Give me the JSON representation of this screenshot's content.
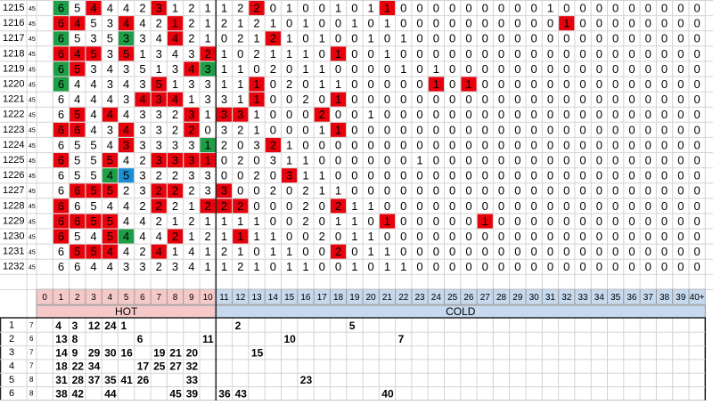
{
  "rows": [
    {
      "id": "1215",
      "sub": "45",
      "values": [
        6,
        5,
        4,
        4,
        4,
        2,
        3,
        1,
        2,
        1,
        1,
        2,
        2,
        0,
        1,
        0,
        0,
        1,
        0,
        1,
        1,
        0,
        0,
        0,
        0,
        0,
        0,
        0,
        0,
        0,
        1,
        0,
        0,
        0,
        0,
        0,
        0,
        0,
        0,
        0
      ],
      "red": [
        2,
        6,
        12,
        20
      ],
      "green": [
        0
      ],
      "blue": []
    },
    {
      "id": "1216",
      "sub": "45",
      "values": [
        6,
        4,
        5,
        3,
        4,
        4,
        2,
        1,
        2,
        1,
        2,
        1,
        2,
        1,
        0,
        1,
        0,
        0,
        1,
        0,
        1,
        0,
        0,
        0,
        0,
        0,
        0,
        0,
        0,
        0,
        0,
        1,
        0,
        0,
        0,
        0,
        0,
        0,
        0,
        0
      ],
      "red": [
        0,
        1,
        4,
        7,
        31
      ],
      "green": [],
      "blue": []
    },
    {
      "id": "1217",
      "sub": "45",
      "values": [
        6,
        5,
        3,
        5,
        3,
        3,
        4,
        4,
        2,
        1,
        0,
        2,
        1,
        2,
        1,
        0,
        1,
        0,
        0,
        1,
        0,
        1,
        0,
        0,
        0,
        0,
        0,
        0,
        0,
        0,
        0,
        0,
        0,
        0,
        0,
        0,
        0,
        0,
        0,
        0
      ],
      "red": [
        7,
        13
      ],
      "green": [
        0,
        4
      ],
      "blue": []
    },
    {
      "id": "1218",
      "sub": "45",
      "values": [
        6,
        4,
        5,
        3,
        5,
        1,
        3,
        4,
        3,
        2,
        1,
        0,
        2,
        1,
        1,
        1,
        0,
        1,
        0,
        0,
        1,
        0,
        0,
        0,
        0,
        0,
        0,
        0,
        0,
        0,
        0,
        0,
        0,
        0,
        0,
        0,
        0,
        0,
        0,
        0
      ],
      "red": [
        0,
        1,
        2,
        4,
        9,
        17
      ],
      "green": [],
      "blue": []
    },
    {
      "id": "1219",
      "sub": "45",
      "values": [
        6,
        5,
        3,
        4,
        3,
        5,
        1,
        3,
        4,
        3,
        1,
        1,
        0,
        2,
        0,
        1,
        1,
        0,
        0,
        0,
        0,
        1,
        0,
        1,
        0,
        0,
        0,
        0,
        0,
        0,
        0,
        0,
        0,
        0,
        0,
        0,
        0,
        0,
        0,
        0
      ],
      "red": [
        1,
        8
      ],
      "green": [
        0,
        9
      ],
      "blue": []
    },
    {
      "id": "1220",
      "sub": "45",
      "values": [
        6,
        4,
        4,
        3,
        4,
        3,
        5,
        1,
        3,
        3,
        1,
        1,
        1,
        0,
        2,
        0,
        1,
        1,
        0,
        0,
        0,
        0,
        0,
        1,
        0,
        1,
        0,
        0,
        0,
        0,
        0,
        0,
        0,
        0,
        0,
        0,
        0,
        0,
        0,
        0
      ],
      "red": [
        6,
        12,
        23,
        25
      ],
      "green": [
        0
      ],
      "blue": []
    },
    {
      "id": "1221",
      "sub": "45",
      "values": [
        6,
        4,
        4,
        4,
        3,
        4,
        3,
        4,
        1,
        3,
        3,
        1,
        1,
        0,
        0,
        2,
        0,
        1,
        0,
        0,
        0,
        0,
        0,
        0,
        0,
        0,
        0,
        0,
        0,
        0,
        0,
        0,
        0,
        0,
        0,
        0,
        0,
        0,
        0,
        0
      ],
      "red": [
        5,
        6,
        7,
        12,
        17
      ],
      "green": [],
      "blue": []
    },
    {
      "id": "1222",
      "sub": "45",
      "values": [
        6,
        5,
        4,
        4,
        4,
        3,
        3,
        2,
        3,
        1,
        3,
        3,
        1,
        0,
        0,
        0,
        2,
        0,
        0,
        1,
        0,
        0,
        0,
        0,
        0,
        0,
        0,
        0,
        0,
        0,
        0,
        0,
        0,
        0,
        0,
        0,
        0,
        0,
        0,
        0
      ],
      "red": [
        1,
        3,
        8,
        10,
        11,
        16
      ],
      "green": [],
      "blue": []
    },
    {
      "id": "1223",
      "sub": "45",
      "values": [
        6,
        6,
        4,
        3,
        4,
        3,
        3,
        2,
        2,
        0,
        3,
        2,
        1,
        0,
        0,
        0,
        1,
        1,
        0,
        0,
        0,
        0,
        0,
        0,
        0,
        0,
        0,
        0,
        0,
        0,
        0,
        0,
        0,
        0,
        0,
        0,
        0,
        0,
        0,
        0
      ],
      "red": [
        0,
        1,
        4,
        8,
        17
      ],
      "green": [],
      "blue": []
    },
    {
      "id": "1224",
      "sub": "45",
      "values": [
        6,
        5,
        5,
        4,
        3,
        3,
        3,
        3,
        3,
        1,
        2,
        0,
        3,
        2,
        1,
        0,
        0,
        0,
        0,
        0,
        0,
        0,
        0,
        0,
        0,
        0,
        0,
        0,
        0,
        0,
        0,
        0,
        0,
        0,
        0,
        0,
        0,
        0,
        0,
        0
      ],
      "red": [
        4,
        13
      ],
      "green": [
        9
      ],
      "blue": []
    },
    {
      "id": "1225",
      "sub": "45",
      "values": [
        6,
        5,
        5,
        5,
        4,
        2,
        3,
        3,
        3,
        1,
        0,
        2,
        0,
        3,
        1,
        1,
        0,
        0,
        0,
        0,
        0,
        0,
        1,
        0,
        0,
        0,
        0,
        0,
        0,
        0,
        0,
        0,
        0,
        0,
        0,
        0,
        0,
        0,
        0,
        0
      ],
      "red": [
        0,
        3,
        6,
        7,
        8,
        9
      ],
      "green": [],
      "blue": []
    },
    {
      "id": "1226",
      "sub": "45",
      "values": [
        6,
        5,
        5,
        4,
        5,
        3,
        2,
        2,
        3,
        3,
        0,
        0,
        2,
        0,
        3,
        1,
        1,
        0,
        0,
        0,
        0,
        0,
        0,
        0,
        0,
        0,
        0,
        0,
        0,
        0,
        0,
        0,
        0,
        0,
        0,
        0,
        0,
        0,
        0,
        0
      ],
      "red": [
        14
      ],
      "green": [
        3
      ],
      "blue": [
        4
      ]
    },
    {
      "id": "1227",
      "sub": "45",
      "values": [
        6,
        6,
        5,
        5,
        2,
        3,
        2,
        2,
        2,
        3,
        3,
        0,
        0,
        2,
        0,
        2,
        1,
        1,
        0,
        0,
        0,
        0,
        0,
        0,
        0,
        0,
        0,
        0,
        0,
        0,
        0,
        0,
        0,
        0,
        0,
        0,
        0,
        0,
        0,
        0
      ],
      "red": [
        1,
        2,
        3,
        6,
        7,
        10
      ],
      "green": [],
      "blue": []
    },
    {
      "id": "1228",
      "sub": "45",
      "values": [
        6,
        6,
        5,
        4,
        4,
        2,
        2,
        2,
        1,
        2,
        2,
        2,
        0,
        0,
        0,
        2,
        0,
        2,
        1,
        1,
        0,
        0,
        0,
        0,
        0,
        0,
        0,
        0,
        0,
        0,
        0,
        0,
        0,
        0,
        0,
        0,
        0,
        0,
        0,
        0
      ],
      "red": [
        0,
        6,
        9,
        10,
        11,
        17
      ],
      "green": [],
      "blue": []
    },
    {
      "id": "1229",
      "sub": "45",
      "values": [
        6,
        6,
        5,
        5,
        4,
        4,
        2,
        1,
        2,
        1,
        1,
        1,
        1,
        0,
        0,
        2,
        0,
        1,
        1,
        0,
        1,
        0,
        0,
        0,
        0,
        0,
        1,
        0,
        0,
        0,
        0,
        0,
        0,
        0,
        0,
        0,
        0,
        0,
        0,
        0
      ],
      "red": [
        0,
        1,
        2,
        3,
        20,
        26
      ],
      "green": [],
      "blue": []
    },
    {
      "id": "1230",
      "sub": "45",
      "values": [
        6,
        5,
        4,
        5,
        4,
        4,
        4,
        2,
        1,
        2,
        1,
        1,
        1,
        1,
        0,
        0,
        2,
        0,
        1,
        1,
        0,
        0,
        0,
        0,
        0,
        0,
        0,
        0,
        0,
        0,
        0,
        0,
        0,
        0,
        0,
        0,
        0,
        0,
        0,
        0
      ],
      "red": [
        0,
        3,
        7,
        11
      ],
      "green": [
        4
      ],
      "blue": []
    },
    {
      "id": "1231",
      "sub": "45",
      "values": [
        6,
        5,
        5,
        4,
        4,
        2,
        4,
        1,
        4,
        1,
        2,
        1,
        0,
        1,
        1,
        0,
        0,
        2,
        0,
        1,
        1,
        0,
        0,
        0,
        0,
        0,
        0,
        0,
        0,
        0,
        0,
        0,
        0,
        0,
        0,
        0,
        0,
        0,
        0,
        0
      ],
      "red": [
        1,
        2,
        3,
        6,
        17
      ],
      "green": [],
      "blue": []
    },
    {
      "id": "1232",
      "sub": "45",
      "values": [
        6,
        6,
        4,
        4,
        3,
        3,
        2,
        3,
        4,
        1,
        1,
        2,
        1,
        0,
        1,
        1,
        0,
        0,
        1,
        0,
        1,
        1,
        0,
        0,
        0,
        0,
        0,
        0,
        0,
        0,
        0,
        0,
        0,
        0,
        0,
        0,
        0,
        0,
        0,
        0
      ],
      "red": [],
      "green": [],
      "blue": []
    }
  ],
  "columns": [
    "0",
    "1",
    "2",
    "3",
    "4",
    "5",
    "6",
    "7",
    "8",
    "9",
    "10",
    "11",
    "12",
    "13",
    "14",
    "15",
    "16",
    "17",
    "18",
    "19",
    "20",
    "21",
    "22",
    "23",
    "24",
    "25",
    "26",
    "27",
    "28",
    "29",
    "30",
    "31",
    "32",
    "33",
    "34",
    "35",
    "36",
    "37",
    "38",
    "39",
    "40+"
  ],
  "hot_label": "HOT",
  "cold_label": "COLD",
  "bottom": [
    {
      "label": "1",
      "count": "7",
      "cells": [
        null,
        4,
        3,
        12,
        24,
        1,
        null,
        null,
        null,
        null,
        null,
        null,
        2,
        null,
        null,
        null,
        null,
        null,
        null,
        5,
        null,
        null,
        null,
        null,
        null,
        null,
        null,
        null,
        null,
        null,
        null,
        null,
        null,
        null,
        null,
        null,
        null,
        null,
        null,
        null,
        null
      ]
    },
    {
      "label": "2",
      "count": "6",
      "cells": [
        null,
        13,
        8,
        null,
        null,
        null,
        6,
        null,
        null,
        null,
        11,
        null,
        null,
        null,
        null,
        10,
        null,
        null,
        null,
        null,
        null,
        null,
        7,
        null,
        null,
        null,
        null,
        null,
        null,
        null,
        null,
        null,
        null,
        null,
        null,
        null,
        null,
        null,
        null,
        null,
        null
      ]
    },
    {
      "label": "3",
      "count": "7",
      "cells": [
        null,
        14,
        9,
        29,
        30,
        16,
        null,
        19,
        21,
        20,
        null,
        null,
        null,
        15,
        null,
        null,
        null,
        null,
        null,
        null,
        null,
        null,
        null,
        null,
        null,
        null,
        null,
        null,
        null,
        null,
        null,
        null,
        null,
        null,
        null,
        null,
        null,
        null,
        null,
        null,
        null
      ]
    },
    {
      "label": "4",
      "count": "7",
      "cells": [
        null,
        18,
        22,
        34,
        null,
        null,
        17,
        25,
        27,
        32,
        null,
        null,
        null,
        null,
        null,
        null,
        null,
        null,
        null,
        null,
        null,
        null,
        null,
        null,
        null,
        null,
        null,
        null,
        null,
        null,
        null,
        null,
        null,
        null,
        null,
        null,
        null,
        null,
        null,
        null,
        null
      ]
    },
    {
      "label": "5",
      "count": "8",
      "cells": [
        null,
        31,
        28,
        37,
        35,
        41,
        26,
        null,
        null,
        33,
        null,
        null,
        null,
        null,
        null,
        null,
        23,
        null,
        null,
        null,
        null,
        null,
        null,
        null,
        null,
        null,
        null,
        null,
        null,
        null,
        null,
        null,
        null,
        null,
        null,
        null,
        null,
        null,
        null,
        null,
        null
      ]
    },
    {
      "label": "6",
      "count": "8",
      "cells": [
        null,
        38,
        42,
        null,
        44,
        null,
        null,
        null,
        45,
        39,
        null,
        36,
        43,
        null,
        null,
        null,
        null,
        null,
        null,
        null,
        null,
        40,
        null,
        null,
        null,
        null,
        null,
        null,
        null,
        null,
        null,
        null,
        null,
        null,
        null,
        null,
        null,
        null,
        null,
        null,
        null
      ]
    }
  ]
}
